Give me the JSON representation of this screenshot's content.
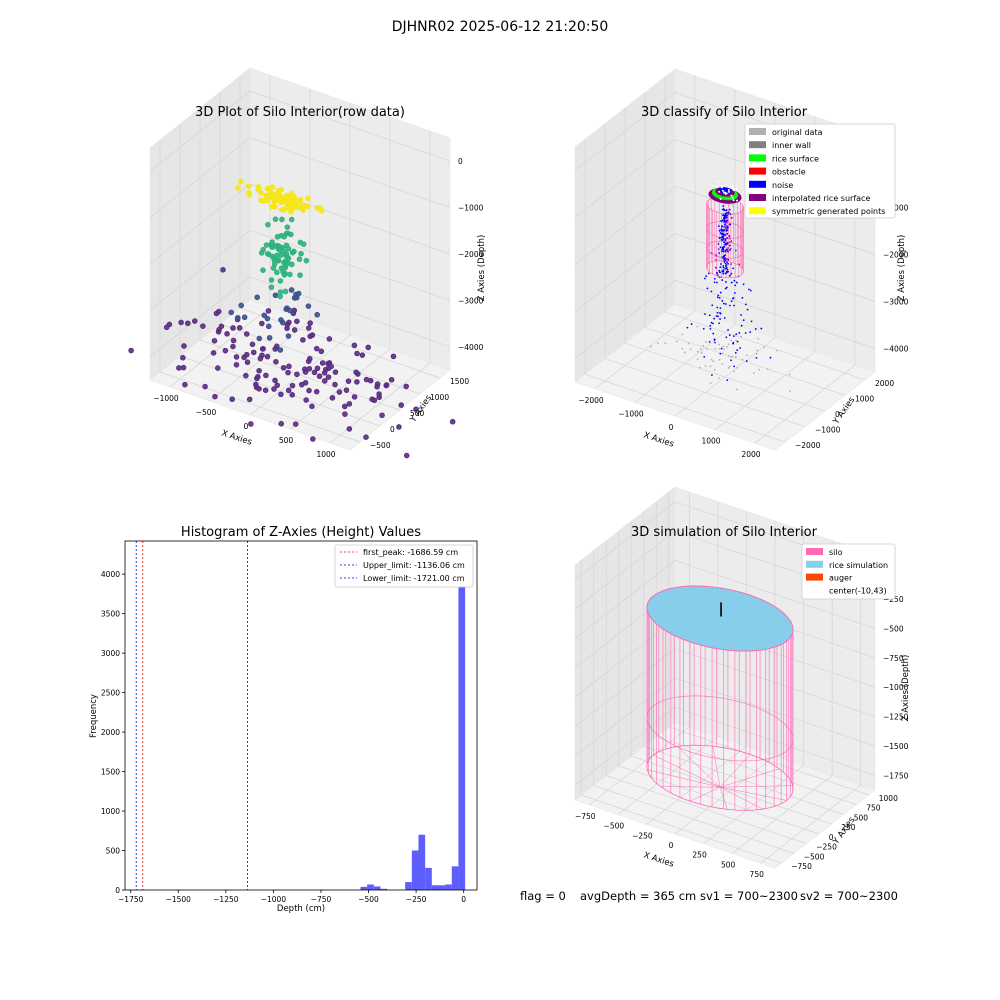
{
  "suptitle": "DJHNR02 2025-06-12 21:20:50",
  "footer": {
    "flag": "flag = 0",
    "avg_depth": "avgDepth = 365 cm",
    "sv1": "sv1 = 700~2300",
    "sv2": "sv2 = 700~2300"
  },
  "colors": {
    "original": "#b0b0b0",
    "inner_wall": "#808080",
    "rice_surface": "#00ff00",
    "obstacle": "#ff0000",
    "noise": "#0000ff",
    "interp": "#800080",
    "symmetric": "#ffff00",
    "silo": "#ff69b4",
    "rice_sim": "#87ceeb",
    "auger": "#ff4500",
    "hist_bar": "#4d4dff",
    "first_peak": "#ff0000",
    "limit": "#0000cc"
  },
  "chart_data": [
    {
      "type": "scatter",
      "title": "3D Plot of Silo Interior(row data)",
      "xlabel": "X Axies",
      "ylabel": "Y Axies",
      "zlabel": "Z Axies (Depth)",
      "x_ticks": [
        "−1000",
        "−500",
        "0",
        "500",
        "1000"
      ],
      "y_ticks": [
        "−500",
        "0",
        "500",
        "1000",
        "1500"
      ],
      "z_ticks": [
        "0",
        "−1000",
        "−2000",
        "−3000",
        "−4000"
      ],
      "xlim": [
        -1200,
        1200
      ],
      "ylim": [
        -800,
        1600
      ],
      "zlim": [
        -4600,
        200
      ],
      "colormap": "viridis",
      "clusters": [
        {
          "x": 0,
          "y": 0,
          "z": -700,
          "n": 90,
          "spread": [
            200,
            60,
            150
          ],
          "color": "#f5e61a"
        },
        {
          "x": -20,
          "y": 30,
          "z": -1900,
          "n": 70,
          "spread": [
            110,
            60,
            700
          ],
          "color": "#2db27d"
        },
        {
          "x": -50,
          "y": 50,
          "z": -3200,
          "n": 25,
          "spread": [
            250,
            300,
            500
          ],
          "color": "#3b528b"
        },
        {
          "x": 100,
          "y": -100,
          "z": -4100,
          "n": 150,
          "spread": [
            650,
            550,
            250
          ],
          "color": "#5a2d82"
        }
      ]
    },
    {
      "type": "scatter",
      "title": "3D classify of Silo Interior",
      "xlabel": "X Axies",
      "ylabel": "Y Axies",
      "zlabel": "Z Axies (Depth)",
      "x_ticks": [
        "−2000",
        "−1000",
        "0",
        "1000",
        "2000"
      ],
      "y_ticks": [
        "−2000",
        "−1000",
        "0",
        "1000",
        "2000"
      ],
      "z_ticks": [
        "0",
        "−1000",
        "−2000",
        "−3000",
        "−4000"
      ],
      "xlim": [
        -2300,
        2300
      ],
      "ylim": [
        -2300,
        2300
      ],
      "zlim": [
        -4600,
        200
      ],
      "legend": [
        "original data",
        "inner wall",
        "rice surface",
        "obstacle",
        "noise",
        "interpolated rice surface",
        "symmetric generated points"
      ],
      "legend_keys": [
        "original",
        "inner_wall",
        "rice_surface",
        "obstacle",
        "noise",
        "interp",
        "symmetric"
      ],
      "legend_position": "top-right"
    },
    {
      "type": "bar",
      "title": "Histogram of Z-Axies (Height) Values",
      "xlabel": "Depth (cm)",
      "ylabel": "Frequency",
      "xlim": [
        -1780,
        70
      ],
      "ylim": [
        0,
        4420
      ],
      "x_ticks": [
        "−1750",
        "−1500",
        "−1250",
        "−1000",
        "−750",
        "−500",
        "−250",
        "0"
      ],
      "y_ticks": [
        "0",
        "500",
        "1000",
        "1500",
        "2000",
        "2500",
        "3000",
        "3500",
        "4000"
      ],
      "bins": [
        {
          "x": -1750,
          "v": 4
        },
        {
          "x": -1500,
          "v": 3
        },
        {
          "x": -1250,
          "v": 3
        },
        {
          "x": -1000,
          "v": 3
        },
        {
          "x": -750,
          "v": 3
        },
        {
          "x": -525,
          "v": 40
        },
        {
          "x": -490,
          "v": 70
        },
        {
          "x": -455,
          "v": 45
        },
        {
          "x": -420,
          "v": 15
        },
        {
          "x": -290,
          "v": 100
        },
        {
          "x": -255,
          "v": 500
        },
        {
          "x": -220,
          "v": 700
        },
        {
          "x": -185,
          "v": 280
        },
        {
          "x": -150,
          "v": 60
        },
        {
          "x": -115,
          "v": 60
        },
        {
          "x": -80,
          "v": 70
        },
        {
          "x": -45,
          "v": 300
        },
        {
          "x": -10,
          "v": 4200
        }
      ],
      "bin_width": 35,
      "lines": [
        {
          "label": "first_peak: -1686.59 cm",
          "x": -1686.59,
          "color": "first_peak"
        },
        {
          "label": "Upper_limit: -1136.06 cm",
          "x": -1136.06,
          "color": "limit"
        },
        {
          "label": "Lower_limit: -1721.00 cm",
          "x": -1721.0,
          "color": "limit"
        }
      ],
      "legend_position": "top-right"
    },
    {
      "type": "scatter",
      "title": "3D simulation of Silo Interior",
      "xlabel": "X Axies",
      "ylabel": "Y Axies",
      "zlabel": "Z Axies (Depth)",
      "x_ticks": [
        "−750",
        "−500",
        "−250",
        "0",
        "250",
        "500",
        "750"
      ],
      "y_ticks": [
        "−750",
        "−500",
        "−250",
        "0",
        "250",
        "500",
        "750",
        "1000"
      ],
      "z_ticks": [
        "0",
        "−250",
        "−500",
        "−750",
        "−1000",
        "−1250",
        "−1500",
        "−1750"
      ],
      "xlim": [
        -900,
        900
      ],
      "ylim": [
        -900,
        1100
      ],
      "zlim": [
        -1900,
        100
      ],
      "legend": [
        "silo",
        "rice simulation",
        "auger",
        "center(-10,43)"
      ],
      "legend_keys": [
        "silo",
        "rice_sim",
        "auger",
        ""
      ],
      "legend_position": "top-right",
      "silo_radius": 600,
      "silo_top": -365,
      "silo_bottom": -1720
    }
  ]
}
